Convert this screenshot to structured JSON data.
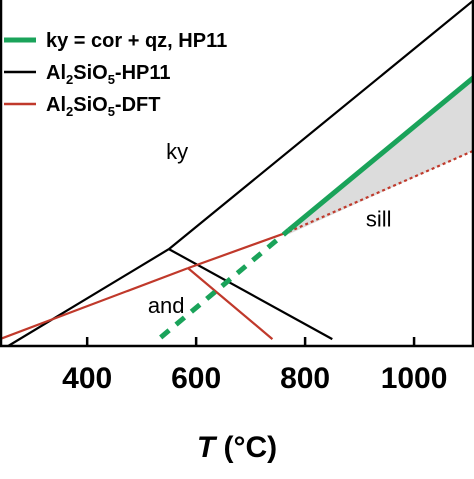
{
  "chart_data": {
    "type": "line",
    "xlabel_italic": "T",
    "xlabel_unit": " (°C)",
    "x_ticks": [
      400,
      600,
      800,
      1000
    ],
    "xlim": [
      240,
      1110
    ],
    "ylim": [
      0,
      1
    ],
    "grid": false,
    "legend_position": "top-left",
    "legend": [
      {
        "key": "green",
        "parts": [
          {
            "t": "ky = cor + qz, HP11",
            "s": "n"
          }
        ],
        "color": "#1aa35a",
        "width": 5
      },
      {
        "key": "black",
        "parts": [
          {
            "t": "Al",
            "s": "n"
          },
          {
            "t": "2",
            "s": "sub"
          },
          {
            "t": "SiO",
            "s": "n"
          },
          {
            "t": "5",
            "s": "sub"
          },
          {
            "t": "-HP11",
            "s": "n"
          }
        ],
        "color": "#000000",
        "width": 2.5
      },
      {
        "key": "red",
        "parts": [
          {
            "t": "Al",
            "s": "n"
          },
          {
            "t": "2",
            "s": "sub"
          },
          {
            "t": "SiO",
            "s": "n"
          },
          {
            "t": "5",
            "s": "sub"
          },
          {
            "t": "-DFT",
            "s": "n"
          }
        ],
        "color": "#c0392b",
        "width": 2.5
      }
    ],
    "field_labels": [
      {
        "text": "ky",
        "x": 565,
        "y": 0.54
      },
      {
        "text": "sill",
        "x": 935,
        "y": 0.345
      },
      {
        "text": "and",
        "x": 545,
        "y": 0.095
      }
    ],
    "shaded_region": {
      "color": "#dcdcdc",
      "x": [
        770,
        1110,
        1110,
        770
      ],
      "y": [
        0.335,
        0.777,
        0.565,
        0.323
      ]
    },
    "series": [
      {
        "key": "black",
        "role": "ky-sill",
        "color": "#000000",
        "dash": "",
        "width": 2.2,
        "x": [
          550,
          1110
        ],
        "y": [
          0.28,
          1.0
        ]
      },
      {
        "key": "black",
        "role": "ky-and",
        "color": "#000000",
        "dash": "",
        "width": 2.2,
        "x": [
          255,
          550
        ],
        "y": [
          0.0,
          0.28
        ]
      },
      {
        "key": "black",
        "role": "and-sill",
        "color": "#000000",
        "dash": "",
        "width": 2.2,
        "x": [
          550,
          850
        ],
        "y": [
          0.28,
          0.02
        ]
      },
      {
        "key": "red",
        "role": "ky-sill",
        "color": "#c0392b",
        "dash": "",
        "width": 2.2,
        "x": [
          585,
          770
        ],
        "y": [
          0.225,
          0.33
        ]
      },
      {
        "key": "red",
        "role": "ky-sill-dashed",
        "color": "#c0392b",
        "dash": "3,3",
        "width": 2.2,
        "x": [
          770,
          1110
        ],
        "y": [
          0.33,
          0.565
        ]
      },
      {
        "key": "red",
        "role": "ky-and",
        "color": "#c0392b",
        "dash": "",
        "width": 2.2,
        "x": [
          240,
          585
        ],
        "y": [
          0.02,
          0.225
        ]
      },
      {
        "key": "red",
        "role": "and-sill",
        "color": "#c0392b",
        "dash": "",
        "width": 2.2,
        "x": [
          585,
          740
        ],
        "y": [
          0.225,
          0.02
        ]
      },
      {
        "key": "green",
        "role": "ky-cor-qz",
        "color": "#1aa35a",
        "dash": "",
        "width": 5,
        "x": [
          770,
          1110
        ],
        "y": [
          0.335,
          0.777
        ]
      },
      {
        "key": "green",
        "role": "ky-cor-qz-metastable",
        "color": "#1aa35a",
        "dash": "11,9",
        "width": 5,
        "x": [
          535,
          770
        ],
        "y": [
          0.025,
          0.335
        ]
      }
    ]
  }
}
